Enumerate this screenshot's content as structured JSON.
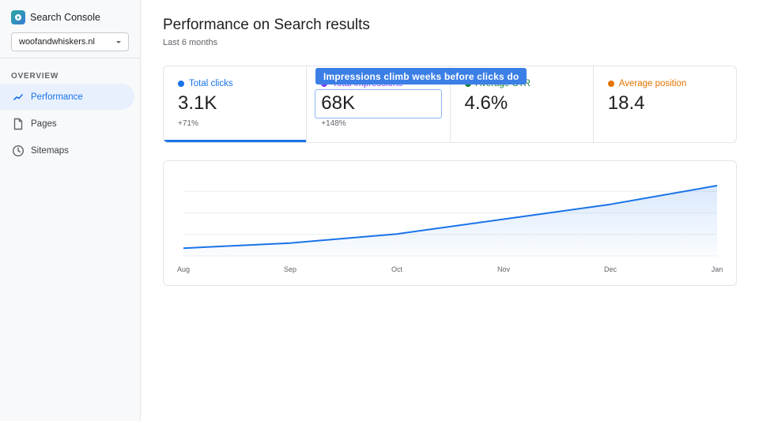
{
  "app": {
    "name": "Search Console",
    "property": "woofandwhiskers.nl"
  },
  "sidebar": {
    "section": "OVERVIEW",
    "items": [
      {
        "label": "Performance",
        "icon": "trend-icon",
        "active": true
      },
      {
        "label": "Pages",
        "icon": "page-icon",
        "active": false
      },
      {
        "label": "Sitemaps",
        "icon": "clock-icon",
        "active": false
      }
    ]
  },
  "main": {
    "title": "Performance on Search results",
    "range": "Last 6 months",
    "callout": "Impressions climb weeks before clicks do"
  },
  "metrics": [
    {
      "label": "Total clicks",
      "value": "3.1K",
      "delta": "+71%",
      "color": "#1a73e8",
      "selected": true
    },
    {
      "label": "Total impressions",
      "value": "68K",
      "delta": "+148%",
      "color": "#7e3ff2",
      "selected": false
    },
    {
      "label": "Average CTR",
      "value": "4.6%",
      "delta": "",
      "color": "#188038",
      "selected": false
    },
    {
      "label": "Average position",
      "value": "18.4",
      "delta": "",
      "color": "#e37400",
      "selected": false
    }
  ],
  "chart_data": {
    "type": "area",
    "categories": [
      "Aug",
      "Sep",
      "Oct",
      "Nov",
      "Dec",
      "Jan"
    ],
    "series": [
      {
        "values": [
          12,
          20,
          34,
          57,
          80,
          109
        ],
        "color": "#1a73e8"
      }
    ],
    "ylim": [
      0,
      120
    ],
    "grid": true
  }
}
